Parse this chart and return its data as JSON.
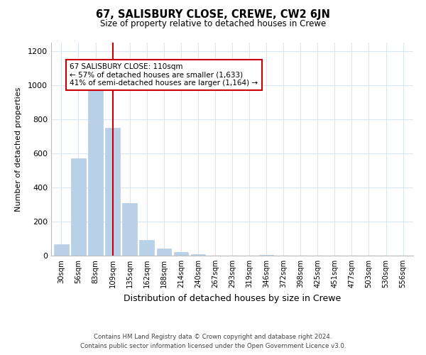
{
  "title": "67, SALISBURY CLOSE, CREWE, CW2 6JN",
  "subtitle": "Size of property relative to detached houses in Crewe",
  "xlabel": "Distribution of detached houses by size in Crewe",
  "ylabel": "Number of detached properties",
  "bar_labels": [
    "30sqm",
    "56sqm",
    "83sqm",
    "109sqm",
    "135sqm",
    "162sqm",
    "188sqm",
    "214sqm",
    "240sqm",
    "267sqm",
    "293sqm",
    "319sqm",
    "346sqm",
    "372sqm",
    "398sqm",
    "425sqm",
    "451sqm",
    "477sqm",
    "503sqm",
    "530sqm",
    "556sqm"
  ],
  "bar_values": [
    65,
    570,
    1005,
    750,
    310,
    90,
    40,
    20,
    10,
    0,
    0,
    0,
    5,
    0,
    0,
    0,
    0,
    0,
    0,
    0,
    0
  ],
  "bar_color": "#b8d0e8",
  "vline_bar_index": 3,
  "vline_color": "#cc0000",
  "annotation_text": "67 SALISBURY CLOSE: 110sqm\n← 57% of detached houses are smaller (1,633)\n41% of semi-detached houses are larger (1,164) →",
  "annotation_box_color": "#ffffff",
  "annotation_border_color": "#cc0000",
  "ylim": [
    0,
    1250
  ],
  "yticks": [
    0,
    200,
    400,
    600,
    800,
    1000,
    1200
  ],
  "footer_line1": "Contains HM Land Registry data © Crown copyright and database right 2024.",
  "footer_line2": "Contains public sector information licensed under the Open Government Licence v3.0.",
  "background_color": "#ffffff",
  "grid_color": "#dce6f0"
}
